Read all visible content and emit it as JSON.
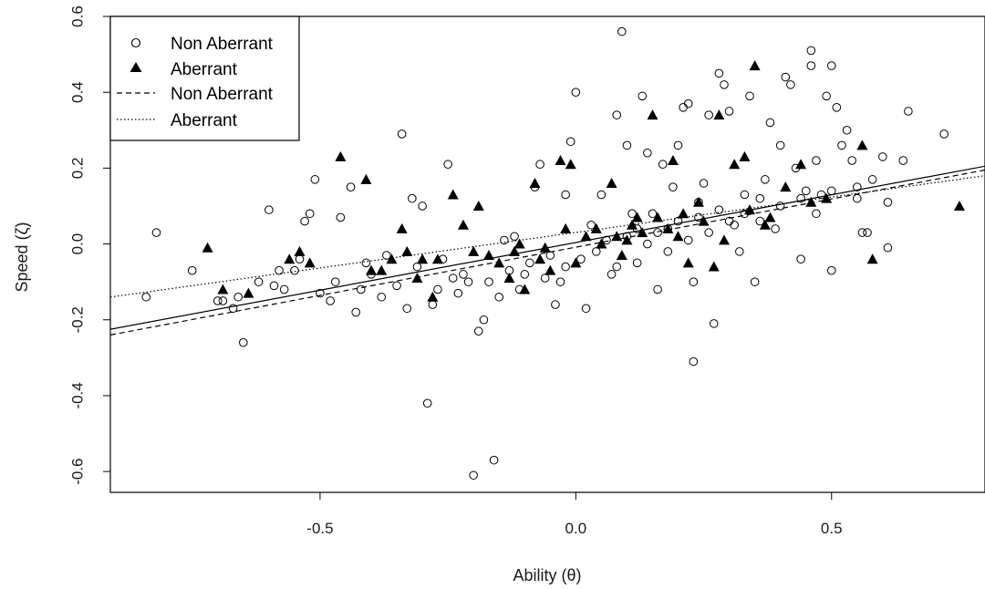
{
  "chart_data": {
    "type": "scatter",
    "xlabel": "Ability (θ)",
    "ylabel": "Speed (ζ)",
    "xlim": [
      -0.91,
      0.8
    ],
    "ylim": [
      -0.655,
      0.6
    ],
    "x_ticks": [
      -0.5,
      0.0,
      0.5
    ],
    "x_tick_labels": [
      "-0.5",
      "0.0",
      "0.5"
    ],
    "y_ticks": [
      -0.6,
      -0.4,
      -0.2,
      0.0,
      0.2,
      0.4,
      0.6
    ],
    "y_tick_labels": [
      "-0.6",
      "-0.4",
      "-0.2",
      "0.0",
      "0.2",
      "0.4",
      "0.6"
    ],
    "grid": false,
    "legend_position": "top-left",
    "legend": [
      {
        "label": "Non Aberrant",
        "symbol": "open-circle"
      },
      {
        "label": "Aberrant",
        "symbol": "filled-triangle"
      },
      {
        "label": "Non Aberrant",
        "symbol": "dashed-line"
      },
      {
        "label": "Aberrant",
        "symbol": "dotted-line"
      }
    ],
    "series": [
      {
        "name": "Non Aberrant",
        "marker": "open-circle",
        "points": [
          [
            -0.82,
            0.03
          ],
          [
            -0.84,
            -0.14
          ],
          [
            -0.75,
            -0.07
          ],
          [
            -0.7,
            -0.15
          ],
          [
            -0.69,
            -0.15
          ],
          [
            -0.67,
            -0.17
          ],
          [
            -0.66,
            -0.14
          ],
          [
            -0.65,
            -0.26
          ],
          [
            -0.62,
            -0.1
          ],
          [
            -0.6,
            0.09
          ],
          [
            -0.59,
            -0.11
          ],
          [
            -0.57,
            -0.12
          ],
          [
            -0.55,
            -0.07
          ],
          [
            -0.53,
            0.06
          ],
          [
            -0.52,
            0.08
          ],
          [
            -0.51,
            0.17
          ],
          [
            -0.5,
            -0.13
          ],
          [
            -0.48,
            -0.15
          ],
          [
            -0.46,
            0.07
          ],
          [
            -0.44,
            0.15
          ],
          [
            -0.43,
            -0.18
          ],
          [
            -0.42,
            -0.12
          ],
          [
            -0.4,
            -0.08
          ],
          [
            -0.38,
            -0.14
          ],
          [
            -0.34,
            0.29
          ],
          [
            -0.33,
            -0.17
          ],
          [
            -0.32,
            0.12
          ],
          [
            -0.3,
            0.1
          ],
          [
            -0.29,
            -0.42
          ],
          [
            -0.27,
            -0.12
          ],
          [
            -0.25,
            0.21
          ],
          [
            -0.24,
            -0.09
          ],
          [
            -0.22,
            -0.08
          ],
          [
            -0.2,
            -0.61
          ],
          [
            -0.19,
            -0.23
          ],
          [
            -0.18,
            -0.2
          ],
          [
            -0.17,
            -0.1
          ],
          [
            -0.16,
            -0.57
          ],
          [
            -0.14,
            0.01
          ],
          [
            -0.12,
            0.02
          ],
          [
            -0.1,
            -0.08
          ],
          [
            -0.08,
            0.15
          ],
          [
            -0.07,
            0.21
          ],
          [
            -0.05,
            -0.03
          ],
          [
            -0.04,
            -0.16
          ],
          [
            -0.02,
            0.13
          ],
          [
            -0.01,
            0.27
          ],
          [
            0.0,
            0.4
          ],
          [
            0.02,
            -0.17
          ],
          [
            0.03,
            0.05
          ],
          [
            0.05,
            0.13
          ],
          [
            0.07,
            -0.08
          ],
          [
            0.08,
            0.34
          ],
          [
            0.09,
            0.56
          ],
          [
            0.1,
            0.26
          ],
          [
            0.11,
            0.08
          ],
          [
            0.12,
            -0.05
          ],
          [
            0.13,
            0.39
          ],
          [
            0.14,
            0.24
          ],
          [
            0.15,
            0.08
          ],
          [
            0.16,
            -0.12
          ],
          [
            0.17,
            0.21
          ],
          [
            0.18,
            0.04
          ],
          [
            0.19,
            0.15
          ],
          [
            0.2,
            0.26
          ],
          [
            0.21,
            0.36
          ],
          [
            0.22,
            0.37
          ],
          [
            0.23,
            -0.1
          ],
          [
            0.23,
            -0.31
          ],
          [
            0.24,
            0.11
          ],
          [
            0.25,
            0.16
          ],
          [
            0.26,
            0.34
          ],
          [
            0.27,
            -0.21
          ],
          [
            0.28,
            0.45
          ],
          [
            0.29,
            0.42
          ],
          [
            0.3,
            0.35
          ],
          [
            0.31,
            0.05
          ],
          [
            0.32,
            -0.02
          ],
          [
            0.33,
            0.13
          ],
          [
            0.34,
            0.39
          ],
          [
            0.35,
            -0.1
          ],
          [
            0.36,
            0.12
          ],
          [
            0.37,
            0.17
          ],
          [
            0.38,
            0.32
          ],
          [
            0.39,
            0.04
          ],
          [
            0.4,
            0.26
          ],
          [
            0.41,
            0.44
          ],
          [
            0.42,
            0.42
          ],
          [
            0.43,
            0.2
          ],
          [
            0.44,
            -0.04
          ],
          [
            0.45,
            0.14
          ],
          [
            0.46,
            0.51
          ],
          [
            0.46,
            0.47
          ],
          [
            0.47,
            0.22
          ],
          [
            0.48,
            0.13
          ],
          [
            0.49,
            0.39
          ],
          [
            0.5,
            -0.07
          ],
          [
            0.5,
            0.47
          ],
          [
            0.51,
            0.36
          ],
          [
            0.52,
            0.26
          ],
          [
            0.53,
            0.3
          ],
          [
            0.54,
            0.22
          ],
          [
            0.55,
            0.12
          ],
          [
            0.56,
            0.03
          ],
          [
            0.58,
            0.17
          ],
          [
            0.6,
            0.23
          ],
          [
            0.61,
            -0.01
          ],
          [
            0.64,
            0.22
          ],
          [
            0.65,
            0.35
          ],
          [
            0.72,
            0.29
          ],
          [
            0.61,
            0.11
          ],
          [
            0.57,
            0.03
          ],
          [
            -0.58,
            -0.07
          ],
          [
            -0.54,
            -0.04
          ],
          [
            -0.47,
            -0.1
          ],
          [
            -0.41,
            -0.05
          ],
          [
            -0.37,
            -0.03
          ],
          [
            -0.35,
            -0.11
          ],
          [
            -0.31,
            -0.06
          ],
          [
            -0.28,
            -0.16
          ],
          [
            -0.26,
            -0.04
          ],
          [
            -0.23,
            -0.13
          ],
          [
            -0.21,
            -0.1
          ],
          [
            -0.15,
            -0.14
          ],
          [
            -0.13,
            -0.07
          ],
          [
            -0.11,
            -0.12
          ],
          [
            -0.09,
            -0.05
          ],
          [
            -0.06,
            -0.09
          ],
          [
            -0.03,
            -0.1
          ],
          [
            -0.02,
            -0.06
          ],
          [
            0.01,
            -0.04
          ],
          [
            0.04,
            -0.02
          ],
          [
            0.06,
            0.01
          ],
          [
            0.08,
            -0.06
          ],
          [
            0.1,
            0.02
          ],
          [
            0.12,
            0.04
          ],
          [
            0.14,
            0.0
          ],
          [
            0.16,
            0.03
          ],
          [
            0.18,
            -0.02
          ],
          [
            0.2,
            0.06
          ],
          [
            0.22,
            0.01
          ],
          [
            0.24,
            0.07
          ],
          [
            0.26,
            0.03
          ],
          [
            0.28,
            0.09
          ],
          [
            0.3,
            0.06
          ],
          [
            0.33,
            0.08
          ],
          [
            0.36,
            0.06
          ],
          [
            0.4,
            0.1
          ],
          [
            0.44,
            0.12
          ],
          [
            0.47,
            0.08
          ],
          [
            0.5,
            0.14
          ],
          [
            0.55,
            0.15
          ]
        ]
      },
      {
        "name": "Aberrant",
        "marker": "filled-triangle",
        "points": [
          [
            -0.72,
            -0.01
          ],
          [
            -0.69,
            -0.12
          ],
          [
            -0.64,
            -0.13
          ],
          [
            -0.56,
            -0.04
          ],
          [
            -0.54,
            -0.02
          ],
          [
            -0.52,
            -0.05
          ],
          [
            -0.46,
            0.23
          ],
          [
            -0.41,
            0.17
          ],
          [
            -0.4,
            -0.07
          ],
          [
            -0.38,
            -0.07
          ],
          [
            -0.36,
            -0.04
          ],
          [
            -0.34,
            0.04
          ],
          [
            -0.33,
            -0.02
          ],
          [
            -0.31,
            -0.09
          ],
          [
            -0.3,
            -0.04
          ],
          [
            -0.28,
            -0.14
          ],
          [
            -0.27,
            -0.04
          ],
          [
            -0.24,
            0.13
          ],
          [
            -0.22,
            0.05
          ],
          [
            -0.2,
            -0.02
          ],
          [
            -0.19,
            0.1
          ],
          [
            -0.17,
            -0.03
          ],
          [
            -0.15,
            -0.05
          ],
          [
            -0.13,
            -0.09
          ],
          [
            -0.11,
            0.0
          ],
          [
            -0.1,
            -0.12
          ],
          [
            -0.08,
            0.16
          ],
          [
            -0.06,
            -0.01
          ],
          [
            -0.05,
            -0.07
          ],
          [
            -0.03,
            0.22
          ],
          [
            -0.02,
            0.04
          ],
          [
            -0.01,
            0.21
          ],
          [
            0.0,
            -0.05
          ],
          [
            0.02,
            0.02
          ],
          [
            0.04,
            0.04
          ],
          [
            0.07,
            0.16
          ],
          [
            0.08,
            0.02
          ],
          [
            0.09,
            -0.03
          ],
          [
            0.1,
            0.01
          ],
          [
            0.12,
            0.07
          ],
          [
            0.13,
            0.03
          ],
          [
            0.15,
            0.34
          ],
          [
            0.16,
            0.07
          ],
          [
            0.18,
            0.04
          ],
          [
            0.19,
            0.22
          ],
          [
            0.21,
            0.08
          ],
          [
            0.22,
            -0.05
          ],
          [
            0.24,
            0.11
          ],
          [
            0.25,
            0.06
          ],
          [
            0.27,
            -0.06
          ],
          [
            0.28,
            0.34
          ],
          [
            0.29,
            0.01
          ],
          [
            0.31,
            0.21
          ],
          [
            0.33,
            0.23
          ],
          [
            0.34,
            0.09
          ],
          [
            0.35,
            0.47
          ],
          [
            0.37,
            0.05
          ],
          [
            0.38,
            0.07
          ],
          [
            0.41,
            0.15
          ],
          [
            0.44,
            0.21
          ],
          [
            0.46,
            0.11
          ],
          [
            0.49,
            0.12
          ],
          [
            0.56,
            0.26
          ],
          [
            0.58,
            -0.04
          ],
          [
            0.75,
            0.1
          ],
          [
            -0.12,
            -0.02
          ],
          [
            -0.07,
            -0.04
          ],
          [
            0.05,
            0.0
          ],
          [
            0.11,
            0.05
          ],
          [
            0.2,
            0.02
          ]
        ]
      }
    ],
    "fit_lines": [
      {
        "legend": "Non Aberrant",
        "style": "dashed",
        "from": [
          -0.91,
          -0.24
        ],
        "to": [
          0.8,
          0.195
        ]
      },
      {
        "legend": "Aberrant",
        "style": "dotted",
        "from": [
          -0.91,
          -0.14
        ],
        "to": [
          0.8,
          0.18
        ]
      },
      {
        "legend": "",
        "style": "solid",
        "from": [
          -0.91,
          -0.225
        ],
        "to": [
          0.8,
          0.205
        ]
      }
    ]
  }
}
